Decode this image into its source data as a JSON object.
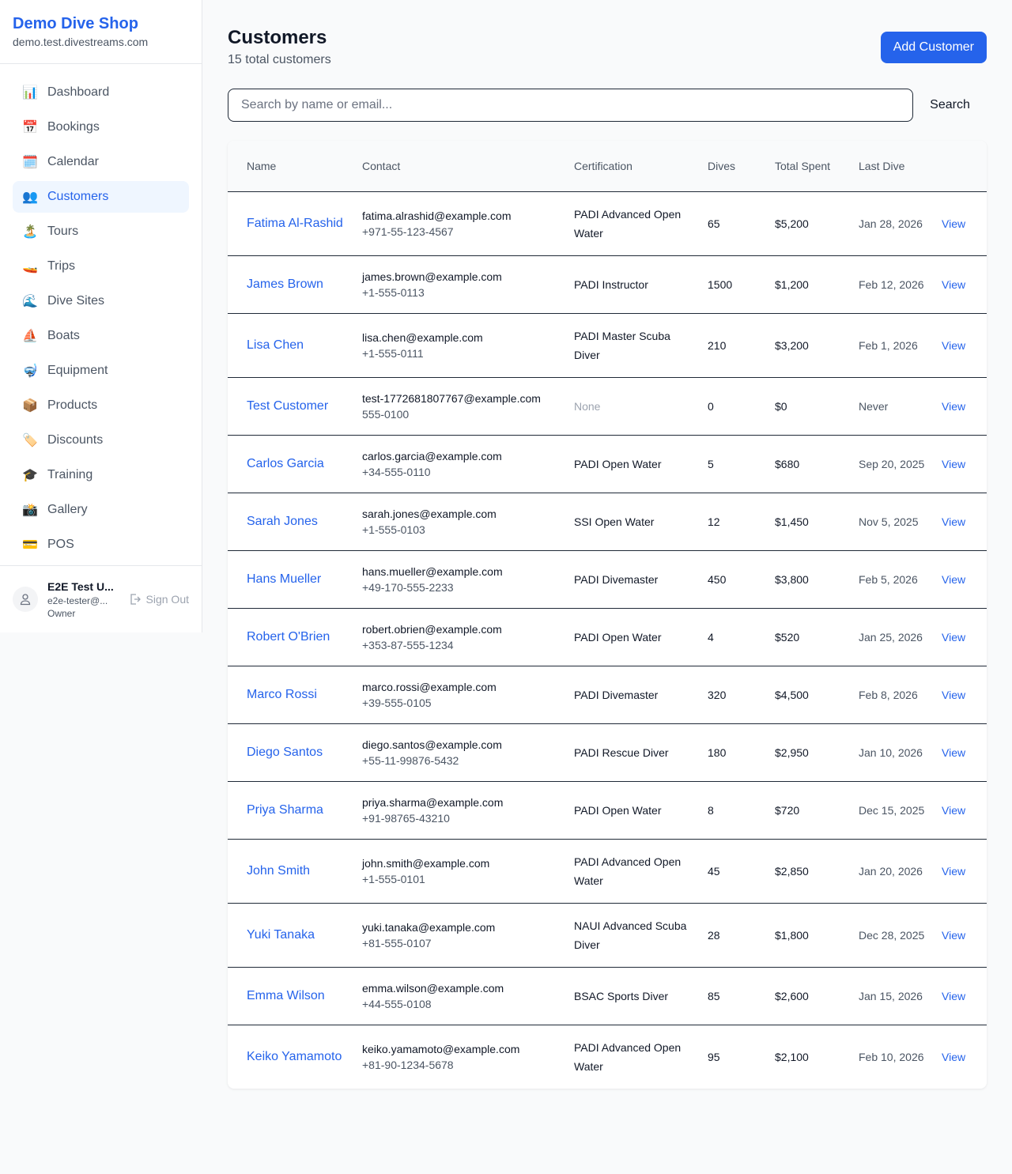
{
  "sidebar": {
    "brand": "Demo Dive Shop",
    "domain": "demo.test.divestreams.com",
    "items": [
      {
        "label": "Dashboard",
        "icon": "📊",
        "name": "bar-chart-icon"
      },
      {
        "label": "Bookings",
        "icon": "📅",
        "name": "calendar-date-icon"
      },
      {
        "label": "Calendar",
        "icon": "🗓️",
        "name": "spiral-calendar-icon"
      },
      {
        "label": "Customers",
        "icon": "👥",
        "name": "users-icon",
        "active": true
      },
      {
        "label": "Tours",
        "icon": "🏝️",
        "name": "island-icon"
      },
      {
        "label": "Trips",
        "icon": "🚤",
        "name": "speedboat-icon"
      },
      {
        "label": "Dive Sites",
        "icon": "🌊",
        "name": "wave-icon"
      },
      {
        "label": "Boats",
        "icon": "⛵",
        "name": "sailboat-icon"
      },
      {
        "label": "Equipment",
        "icon": "🤿",
        "name": "diving-mask-icon"
      },
      {
        "label": "Products",
        "icon": "📦",
        "name": "package-icon"
      },
      {
        "label": "Discounts",
        "icon": "🏷️",
        "name": "tag-icon"
      },
      {
        "label": "Training",
        "icon": "🎓",
        "name": "graduation-cap-icon"
      },
      {
        "label": "Gallery",
        "icon": "📸",
        "name": "camera-icon"
      },
      {
        "label": "POS",
        "icon": "💳",
        "name": "credit-card-icon"
      }
    ],
    "user": {
      "name": "E2E Test U...",
      "email": "e2e-tester@...",
      "role": "Owner",
      "sign_out": "Sign Out"
    }
  },
  "header": {
    "title": "Customers",
    "subtitle": "15 total customers",
    "add_label": "Add Customer"
  },
  "search": {
    "placeholder": "Search by name or email...",
    "button": "Search",
    "value": ""
  },
  "table": {
    "columns": [
      "Name",
      "Contact",
      "Certification",
      "Dives",
      "Total Spent",
      "Last Dive",
      ""
    ],
    "view_label": "View",
    "rows": [
      {
        "name": "Fatima Al-Rashid",
        "email": "fatima.alrashid@example.com",
        "phone": "+971-55-123-4567",
        "cert": "PADI Advanced Open Water",
        "dives": "65",
        "spent": "$5,200",
        "last": "Jan 28, 2026"
      },
      {
        "name": "James Brown",
        "email": "james.brown@example.com",
        "phone": "+1-555-0113",
        "cert": "PADI Instructor",
        "dives": "1500",
        "spent": "$1,200",
        "last": "Feb 12, 2026"
      },
      {
        "name": "Lisa Chen",
        "email": "lisa.chen@example.com",
        "phone": "+1-555-0111",
        "cert": "PADI Master Scuba Diver",
        "dives": "210",
        "spent": "$3,200",
        "last": "Feb 1, 2026"
      },
      {
        "name": "Test Customer",
        "email": "test-1772681807767@example.com",
        "phone": "555-0100",
        "cert": "None",
        "dives": "0",
        "spent": "$0",
        "last": "Never"
      },
      {
        "name": "Carlos Garcia",
        "email": "carlos.garcia@example.com",
        "phone": "+34-555-0110",
        "cert": "PADI Open Water",
        "dives": "5",
        "spent": "$680",
        "last": "Sep 20, 2025"
      },
      {
        "name": "Sarah Jones",
        "email": "sarah.jones@example.com",
        "phone": "+1-555-0103",
        "cert": "SSI Open Water",
        "dives": "12",
        "spent": "$1,450",
        "last": "Nov 5, 2025"
      },
      {
        "name": "Hans Mueller",
        "email": "hans.mueller@example.com",
        "phone": "+49-170-555-2233",
        "cert": "PADI Divemaster",
        "dives": "450",
        "spent": "$3,800",
        "last": "Feb 5, 2026"
      },
      {
        "name": "Robert O'Brien",
        "email": "robert.obrien@example.com",
        "phone": "+353-87-555-1234",
        "cert": "PADI Open Water",
        "dives": "4",
        "spent": "$520",
        "last": "Jan 25, 2026"
      },
      {
        "name": "Marco Rossi",
        "email": "marco.rossi@example.com",
        "phone": "+39-555-0105",
        "cert": "PADI Divemaster",
        "dives": "320",
        "spent": "$4,500",
        "last": "Feb 8, 2026"
      },
      {
        "name": "Diego Santos",
        "email": "diego.santos@example.com",
        "phone": "+55-11-99876-5432",
        "cert": "PADI Rescue Diver",
        "dives": "180",
        "spent": "$2,950",
        "last": "Jan 10, 2026"
      },
      {
        "name": "Priya Sharma",
        "email": "priya.sharma@example.com",
        "phone": "+91-98765-43210",
        "cert": "PADI Open Water",
        "dives": "8",
        "spent": "$720",
        "last": "Dec 15, 2025"
      },
      {
        "name": "John Smith",
        "email": "john.smith@example.com",
        "phone": "+1-555-0101",
        "cert": "PADI Advanced Open Water",
        "dives": "45",
        "spent": "$2,850",
        "last": "Jan 20, 2026"
      },
      {
        "name": "Yuki Tanaka",
        "email": "yuki.tanaka@example.com",
        "phone": "+81-555-0107",
        "cert": "NAUI Advanced Scuba Diver",
        "dives": "28",
        "spent": "$1,800",
        "last": "Dec 28, 2025"
      },
      {
        "name": "Emma Wilson",
        "email": "emma.wilson@example.com",
        "phone": "+44-555-0108",
        "cert": "BSAC Sports Diver",
        "dives": "85",
        "spent": "$2,600",
        "last": "Jan 15, 2026"
      },
      {
        "name": "Keiko Yamamoto",
        "email": "keiko.yamamoto@example.com",
        "phone": "+81-90-1234-5678",
        "cert": "PADI Advanced Open Water",
        "dives": "95",
        "spent": "$2,100",
        "last": "Feb 10, 2026"
      }
    ]
  },
  "colors": {
    "accent": "#2563eb",
    "active_bg": "#eff6ff"
  }
}
